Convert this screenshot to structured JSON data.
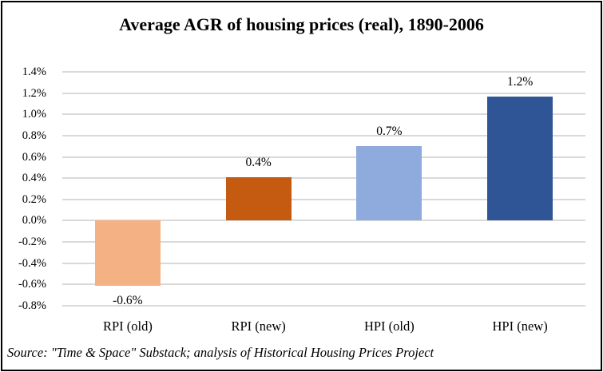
{
  "source_note": "Source: \"Time & Space\" Substack; analysis of Historical Housing Prices Project",
  "chart_data": {
    "type": "bar",
    "title": "Average AGR of housing prices (real), 1890-2006",
    "categories": [
      "RPI (old)",
      "RPI (new)",
      "HPI (old)",
      "HPI (new)"
    ],
    "values": [
      -0.61,
      0.41,
      0.7,
      1.17
    ],
    "data_labels": [
      "-0.6%",
      "0.4%",
      "0.7%",
      "1.2%"
    ],
    "bar_colors": [
      "#F4B183",
      "#C55A11",
      "#8FAADC",
      "#2F5597"
    ],
    "y_axis": {
      "min": -0.8,
      "max": 1.4,
      "step": 0.2,
      "tick_labels": [
        "1.4%",
        "1.2%",
        "1.0%",
        "0.8%",
        "0.6%",
        "0.4%",
        "0.2%",
        "0.0%",
        "-0.2%",
        "-0.4%",
        "-0.6%",
        "-0.8%"
      ]
    },
    "gridline_color": "#D9D9D9",
    "grid": "horizontal",
    "legend": "none",
    "unit": "percent"
  }
}
